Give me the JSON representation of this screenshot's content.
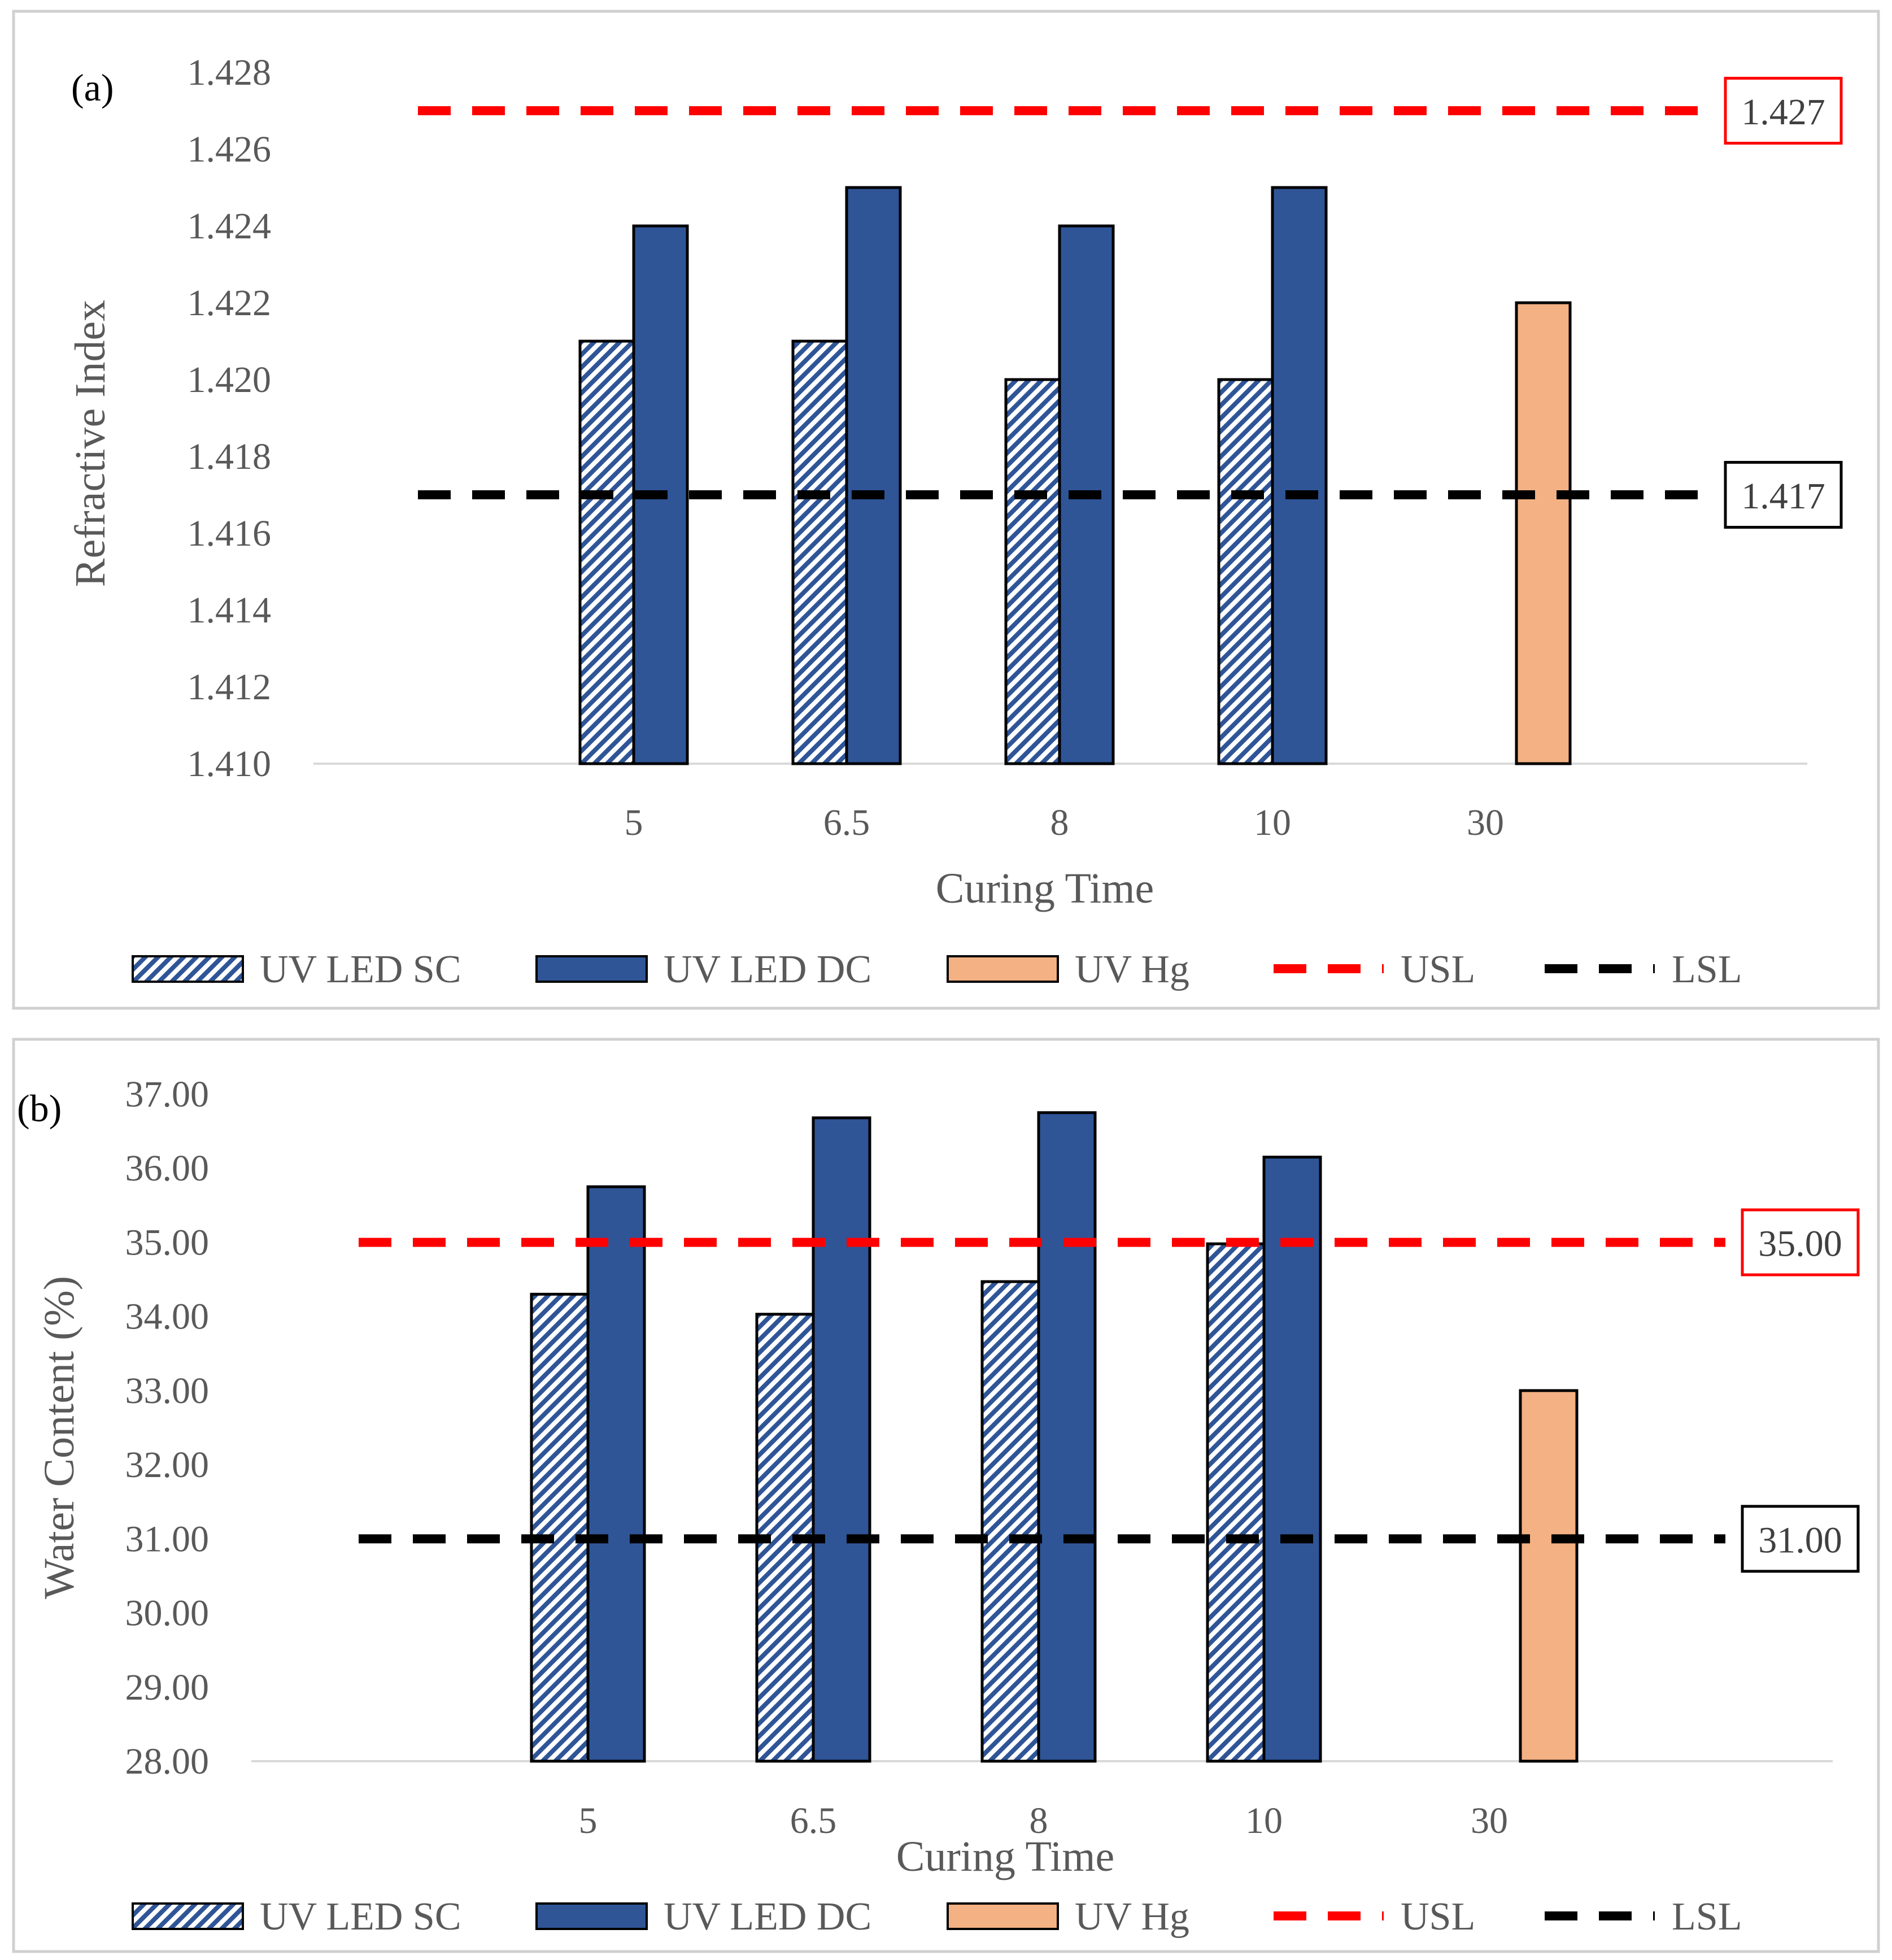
{
  "colors": {
    "sc_fg": "#2f5597",
    "dc": "#2f5597",
    "hg": "#f4b183",
    "usl": "#ff0000",
    "lsl": "#000000"
  },
  "legend": {
    "sc": "UV LED SC",
    "dc": "UV LED DC",
    "hg": "UV Hg",
    "usl": "USL",
    "lsl": "LSL"
  },
  "chart_data": [
    {
      "type": "bar",
      "panel": "(a)",
      "title": "",
      "xlabel": "Curing Time",
      "ylabel": "Refractive Index",
      "categories": [
        "5",
        "6.5",
        "8",
        "10",
        "30"
      ],
      "ylim": [
        1.41,
        1.428
      ],
      "yticks": [
        1.41,
        1.412,
        1.414,
        1.416,
        1.418,
        1.42,
        1.422,
        1.424,
        1.426,
        1.428
      ],
      "tick_decimals": 3,
      "series": [
        {
          "name": "UV LED SC",
          "values": [
            1.421,
            1.421,
            1.42,
            1.42,
            null
          ]
        },
        {
          "name": "UV LED DC",
          "values": [
            1.424,
            1.425,
            1.424,
            1.425,
            null
          ]
        },
        {
          "name": "UV Hg",
          "values": [
            null,
            null,
            null,
            null,
            1.422
          ]
        }
      ],
      "usl": 1.427,
      "lsl": 1.417,
      "usl_label": "1.427",
      "lsl_label": "1.417",
      "grid": false,
      "legend_position": "bottom"
    },
    {
      "type": "bar",
      "panel": "(b)",
      "title": "",
      "xlabel": "Curing Time",
      "ylabel": "Water Content (%)",
      "categories": [
        "5",
        "6.5",
        "8",
        "10",
        "30"
      ],
      "ylim": [
        28,
        37
      ],
      "yticks": [
        28,
        29,
        30,
        31,
        32,
        33,
        34,
        35,
        36,
        37
      ],
      "tick_decimals": 2,
      "series": [
        {
          "name": "UV LED SC",
          "values": [
            34.3,
            34.03,
            34.47,
            34.98,
            null
          ]
        },
        {
          "name": "UV LED DC",
          "values": [
            35.75,
            36.68,
            36.75,
            36.15,
            null
          ]
        },
        {
          "name": "UV Hg",
          "values": [
            null,
            null,
            null,
            null,
            33.0
          ]
        }
      ],
      "usl": 35.0,
      "lsl": 31.0,
      "usl_label": "35.00",
      "lsl_label": "31.00",
      "grid": false,
      "legend_position": "bottom"
    }
  ]
}
